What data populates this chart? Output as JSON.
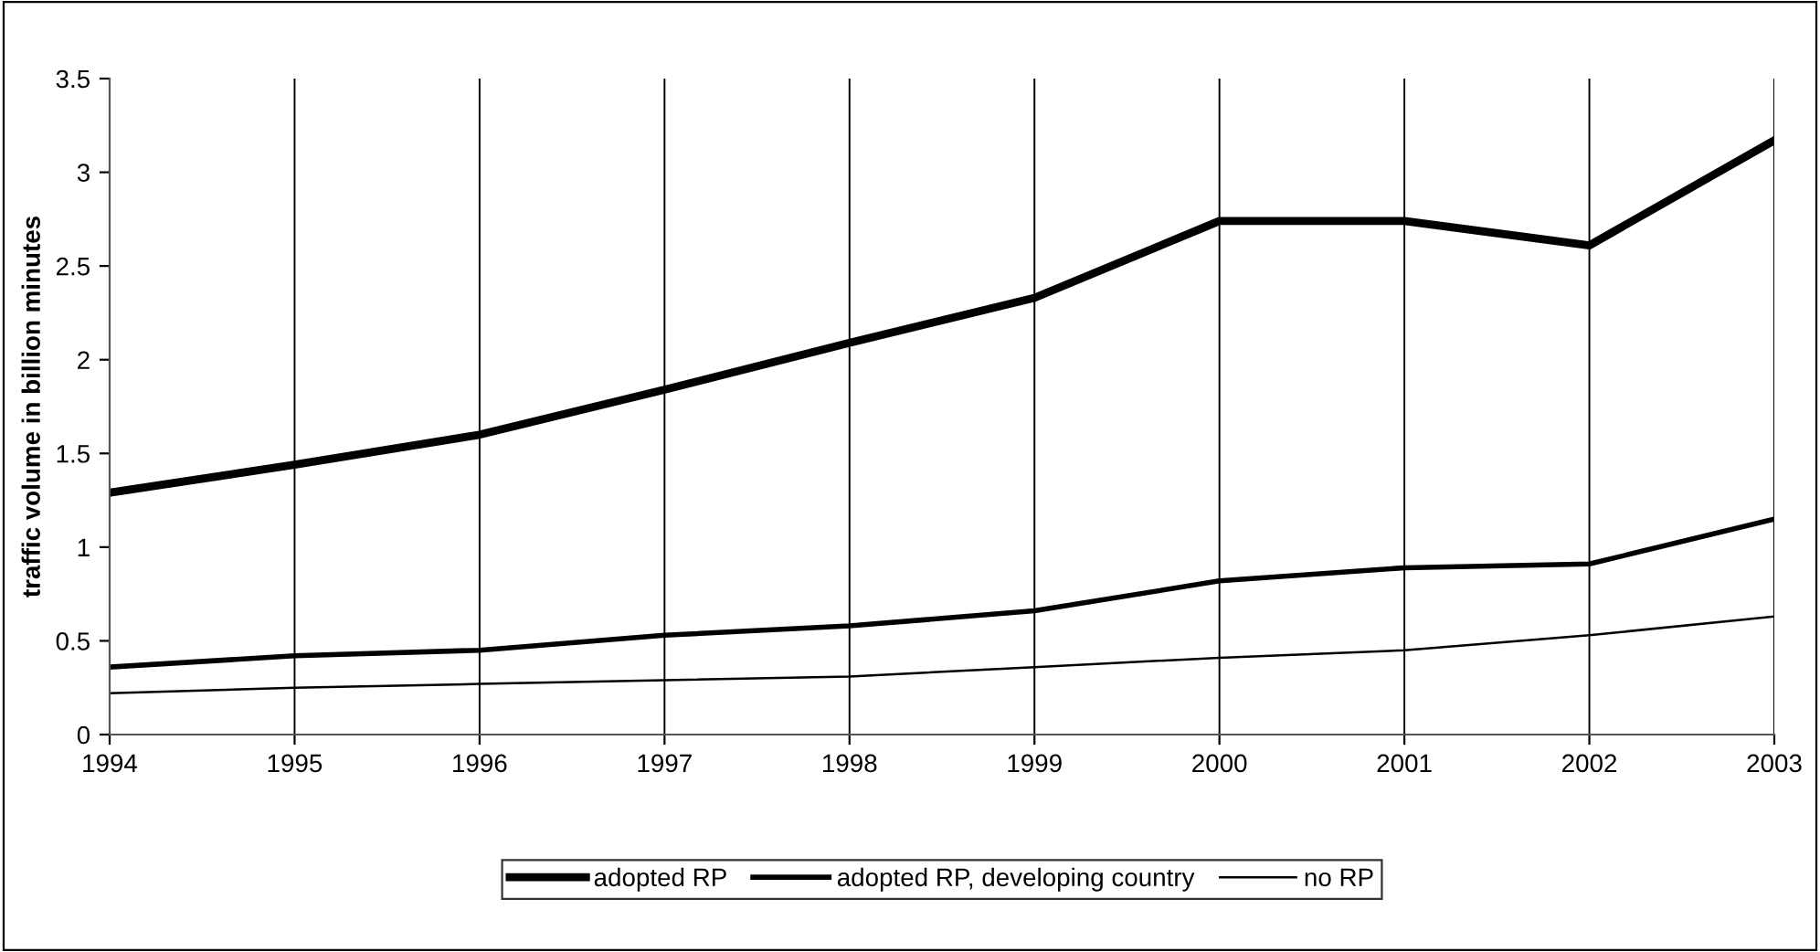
{
  "chart_data": {
    "type": "line",
    "ylabel": "traffic volume in billion minutes",
    "x": [
      1994,
      1995,
      1996,
      1997,
      1998,
      1999,
      2000,
      2001,
      2002,
      2003
    ],
    "series": [
      {
        "name": "adopted RP",
        "color": "#000000",
        "values": [
          1.29,
          1.44,
          1.6,
          1.84,
          2.09,
          2.33,
          2.74,
          2.74,
          2.61,
          3.17
        ]
      },
      {
        "name": "adopted RP, developing country",
        "color": "#000000",
        "values": [
          0.36,
          0.42,
          0.45,
          0.53,
          0.58,
          0.66,
          0.82,
          0.89,
          0.91,
          1.15
        ]
      },
      {
        "name": "no RP",
        "color": "#000000",
        "values": [
          0.22,
          0.25,
          0.27,
          0.29,
          0.31,
          0.36,
          0.41,
          0.45,
          0.53,
          0.63
        ]
      }
    ],
    "xlim": [
      1994,
      2003
    ],
    "xticks": [
      1994,
      1995,
      1996,
      1997,
      1998,
      1999,
      2000,
      2001,
      2002,
      2003
    ],
    "ylim": [
      0,
      3.5
    ],
    "yticks": [
      0,
      {
        "value": 0.5,
        "label": "0.5"
      },
      1,
      {
        "value": 1.5,
        "label": "1.5"
      },
      2,
      {
        "value": 2.5,
        "label": "2.5"
      },
      3,
      {
        "value": 3.5,
        "label": "3.5"
      }
    ],
    "grid": "x",
    "legend": "bottom",
    "marker": "none",
    "line_style": "solid"
  }
}
